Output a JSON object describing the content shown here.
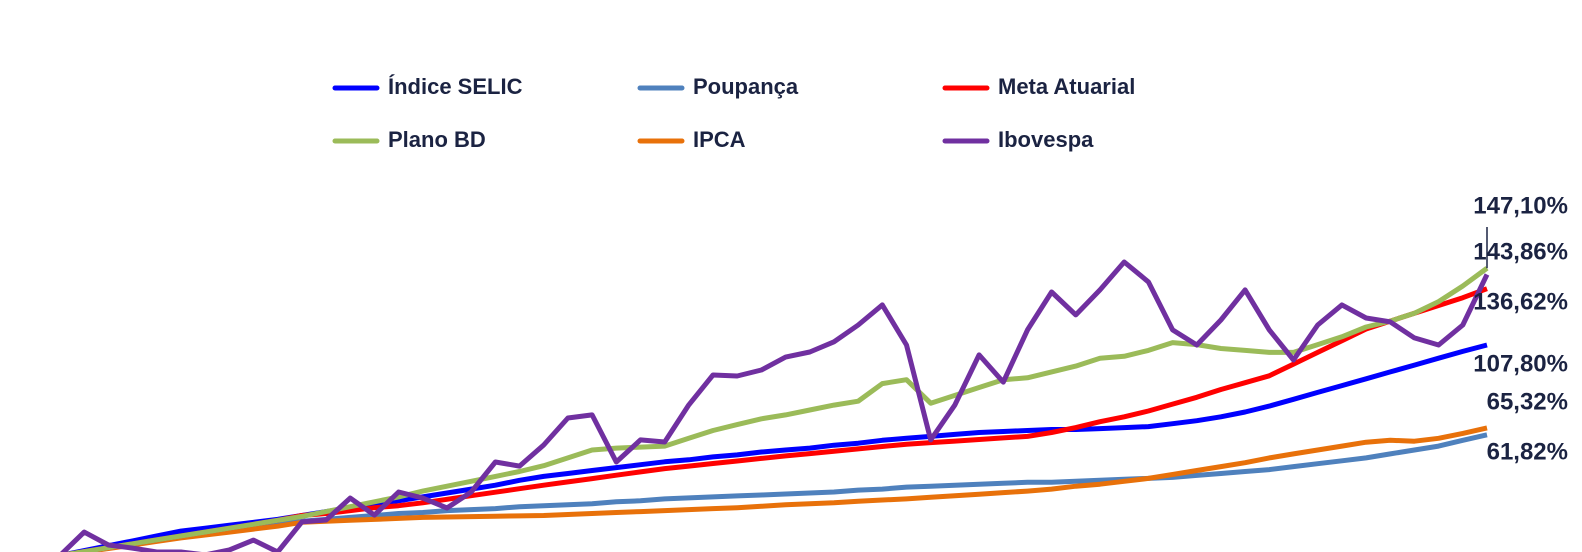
{
  "chart_data": {
    "type": "line",
    "series": [
      {
        "name": "Índice SELIC",
        "color": "#0000ff",
        "values": [
          0,
          2.5,
          5,
          7.5,
          10,
          12.5,
          14,
          15.5,
          17,
          18.5,
          20.5,
          22.5,
          24.5,
          26.5,
          28,
          30,
          32,
          34,
          36,
          38.5,
          40.5,
          42,
          43.5,
          45,
          46.5,
          48,
          49,
          50.5,
          51.5,
          53,
          54,
          55,
          56.5,
          57.5,
          59,
          60,
          61,
          62,
          63,
          63.5,
          64,
          64.5,
          64.5,
          65,
          65.5,
          66,
          67.5,
          69,
          71,
          73.5,
          76.5,
          80,
          83.5,
          87,
          90.5,
          94,
          97.5,
          101,
          104.5,
          107.8
        ],
        "value_labels": [
          null,
          null,
          null,
          null,
          null,
          null,
          null,
          null,
          null,
          null,
          null,
          null,
          null,
          null,
          null,
          null,
          null,
          null,
          null,
          null,
          null,
          null,
          null,
          null,
          null,
          null,
          null,
          null,
          null,
          null,
          null,
          null,
          null,
          null,
          null,
          null,
          null,
          null,
          null,
          null,
          null,
          null,
          null,
          null,
          null,
          null,
          null,
          null,
          null,
          null,
          null,
          null,
          null,
          null,
          null,
          null,
          null,
          null,
          null,
          "107,80%"
        ]
      },
      {
        "name": "Poupança",
        "color": "#4f81bd",
        "values": [
          0,
          2,
          4,
          6,
          8,
          10,
          11.5,
          13,
          14.5,
          16,
          17.5,
          18.5,
          19.5,
          20.5,
          21.5,
          22,
          23,
          23.5,
          24,
          25,
          25.5,
          26,
          26.5,
          27.5,
          28,
          29,
          29.5,
          30,
          30.5,
          31,
          31.5,
          32,
          32.5,
          33.5,
          34,
          35,
          35.5,
          36,
          36.5,
          37,
          37.5,
          37.5,
          38,
          38.5,
          39,
          39.5,
          40,
          41,
          42,
          43,
          44,
          45.5,
          47,
          48.5,
          50,
          52,
          54,
          56,
          59,
          61.82
        ],
        "value_labels": [
          null,
          null,
          null,
          null,
          null,
          null,
          null,
          null,
          null,
          null,
          null,
          null,
          null,
          null,
          null,
          null,
          null,
          null,
          null,
          null,
          null,
          null,
          null,
          null,
          null,
          null,
          null,
          null,
          null,
          null,
          null,
          null,
          null,
          null,
          null,
          null,
          null,
          null,
          null,
          null,
          null,
          null,
          null,
          null,
          null,
          null,
          null,
          null,
          null,
          null,
          null,
          null,
          null,
          null,
          null,
          null,
          null,
          null,
          null,
          "61,82%"
        ]
      },
      {
        "name": "Meta Atuarial",
        "color": "#ff0000",
        "values": [
          0,
          2,
          4,
          6,
          8,
          10,
          12,
          14,
          16,
          18,
          20.5,
          21.5,
          23,
          24.5,
          25.5,
          27,
          28.8,
          30.6,
          32.4,
          34.2,
          36,
          37.7,
          39.4,
          41.1,
          42.8,
          44.5,
          45.8,
          47.1,
          48.4,
          49.7,
          51,
          52.2,
          53.4,
          54.6,
          55.8,
          57,
          57.8,
          58.6,
          59.4,
          60.2,
          61,
          63,
          65.5,
          68.5,
          71,
          74,
          77.5,
          81,
          85,
          88.5,
          92,
          98,
          104,
          110,
          116,
          120,
          124,
          128,
          132,
          136.62
        ],
        "value_labels": [
          null,
          null,
          null,
          null,
          null,
          null,
          null,
          null,
          null,
          null,
          null,
          null,
          null,
          null,
          null,
          null,
          null,
          null,
          null,
          null,
          null,
          null,
          null,
          null,
          null,
          null,
          null,
          null,
          null,
          null,
          null,
          null,
          null,
          null,
          null,
          null,
          null,
          null,
          null,
          null,
          null,
          null,
          null,
          null,
          null,
          null,
          null,
          null,
          null,
          null,
          null,
          null,
          null,
          null,
          null,
          null,
          null,
          null,
          null,
          "136,62%"
        ]
      },
      {
        "name": "Plano BD",
        "color": "#9bbb59",
        "values": [
          0,
          2,
          4,
          6,
          8,
          10,
          12,
          14,
          16,
          18,
          20,
          22.5,
          25,
          27.5,
          30,
          33,
          35.5,
          38,
          40.5,
          43,
          46,
          50,
          54,
          55,
          55.5,
          56,
          60,
          64,
          67,
          70,
          72,
          74.5,
          77,
          79,
          88,
          90,
          78,
          82,
          86,
          90,
          91,
          94,
          97,
          101,
          102,
          105,
          109,
          108,
          106,
          105,
          104,
          104,
          108,
          112,
          117,
          120,
          124,
          130,
          138,
          147.1
        ],
        "value_labels": [
          null,
          null,
          null,
          null,
          null,
          null,
          null,
          null,
          null,
          null,
          null,
          null,
          null,
          null,
          null,
          null,
          null,
          null,
          null,
          null,
          null,
          null,
          null,
          null,
          null,
          null,
          null,
          null,
          null,
          null,
          null,
          null,
          null,
          null,
          null,
          null,
          null,
          null,
          null,
          null,
          null,
          null,
          null,
          null,
          null,
          null,
          null,
          null,
          null,
          null,
          null,
          null,
          null,
          null,
          null,
          null,
          null,
          null,
          null,
          "147,10%"
        ]
      },
      {
        "name": "IPCA",
        "color": "#e8710a",
        "values": [
          0,
          1.8,
          3.6,
          5.4,
          7.2,
          9,
          10.5,
          12,
          13.5,
          15,
          17,
          17.5,
          18,
          18.5,
          19,
          19.5,
          19.7,
          19.9,
          20.1,
          20.3,
          20.5,
          21,
          21.5,
          22,
          22.5,
          23,
          23.5,
          24,
          24.5,
          25.2,
          26,
          26.5,
          27,
          27.8,
          28.4,
          29,
          29.8,
          30.6,
          31.4,
          32.2,
          33,
          34,
          35.5,
          36.5,
          38,
          39.5,
          41.5,
          43.5,
          45.5,
          47.5,
          50,
          52,
          54,
          56,
          58,
          59,
          58.5,
          60,
          62.5,
          65.32
        ],
        "value_labels": [
          null,
          null,
          null,
          null,
          null,
          null,
          null,
          null,
          null,
          null,
          null,
          null,
          null,
          null,
          null,
          null,
          null,
          null,
          null,
          null,
          null,
          null,
          null,
          null,
          null,
          null,
          null,
          null,
          null,
          null,
          null,
          null,
          null,
          null,
          null,
          null,
          null,
          null,
          null,
          null,
          null,
          null,
          null,
          null,
          null,
          null,
          null,
          null,
          null,
          null,
          null,
          null,
          null,
          null,
          null,
          null,
          null,
          null,
          null,
          "65,32%"
        ]
      },
      {
        "name": "Ibovespa",
        "color": "#7030a0",
        "values": [
          0,
          12,
          5.4,
          3.8,
          1.8,
          1.8,
          0.3,
          2.8,
          7.9,
          1.8,
          17.2,
          18.2,
          29.4,
          20.7,
          32.5,
          29.4,
          24.3,
          32.5,
          47.9,
          45.8,
          56.6,
          70.4,
          72,
          47.9,
          59.2,
          58.1,
          77.1,
          92.4,
          91.9,
          95,
          101.6,
          104.2,
          109.4,
          118,
          128.3,
          107.8,
          59.2,
          77.1,
          102.7,
          88.8,
          115.5,
          134.9,
          123.2,
          136,
          150.3,
          140.1,
          115.5,
          107.8,
          120.6,
          136,
          115.5,
          100.1,
          118,
          128.3,
          121.6,
          119.6,
          111.4,
          107.8,
          118,
          143.86
        ],
        "value_labels": [
          null,
          null,
          null,
          null,
          null,
          null,
          null,
          null,
          null,
          null,
          null,
          null,
          null,
          null,
          null,
          null,
          null,
          null,
          null,
          null,
          null,
          null,
          null,
          null,
          null,
          null,
          null,
          null,
          null,
          null,
          null,
          null,
          null,
          null,
          null,
          null,
          null,
          null,
          null,
          null,
          null,
          null,
          null,
          null,
          null,
          null,
          null,
          null,
          null,
          null,
          null,
          null,
          null,
          null,
          null,
          null,
          null,
          null,
          null,
          "143,86%"
        ]
      }
    ]
  }
}
